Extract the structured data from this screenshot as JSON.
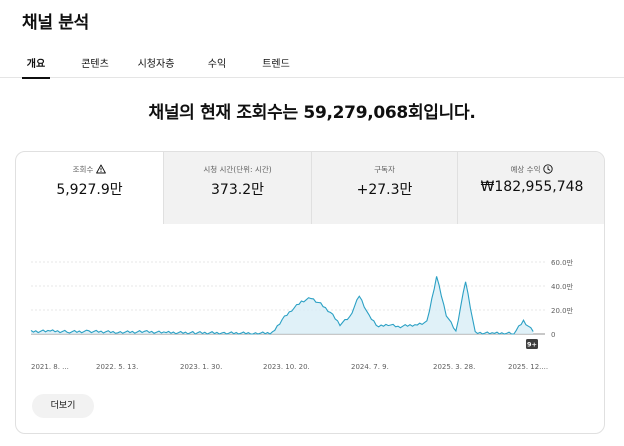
{
  "page_title": "채널 분석",
  "tabs": [
    {
      "label": "개요",
      "active": true
    },
    {
      "label": "콘텐츠",
      "active": false
    },
    {
      "label": "시청자층",
      "active": false
    },
    {
      "label": "수익",
      "active": false
    },
    {
      "label": "트렌드",
      "active": false
    }
  ],
  "headline": "채널의 현재 조회수는 59,279,068회입니다.",
  "metrics": [
    {
      "label": "조회수",
      "value": "5,927.9만",
      "icon": "warning-icon",
      "selected": true
    },
    {
      "label": "시청 시간(단위: 시간)",
      "value": "373.2만",
      "selected": false
    },
    {
      "label": "구독자",
      "value": "+27.3만",
      "selected": false
    },
    {
      "label": "예상 수익",
      "value": "₩182,955,748",
      "icon": "clock-icon",
      "selected": false
    }
  ],
  "more_button": "더보기",
  "colors": {
    "line": "#2ba0c4",
    "fill": "#d8eef6",
    "grid": "#e0e0e0",
    "tab_active": "#0f0f0f"
  },
  "chart_data": {
    "type": "area",
    "x_ticks": [
      "2021. 8. ...",
      "2022. 5. 13.",
      "2023. 1. 30.",
      "2023. 10. 20.",
      "2024. 7. 9.",
      "2025. 3. 28.",
      "2025. 12...."
    ],
    "y_ticks": [
      "60.0만",
      "40.0만",
      "20.0만",
      "0"
    ],
    "ylim": [
      0,
      600000
    ],
    "marker_badge": "9+",
    "series": [
      {
        "x": [
          "2021-08",
          "2021-10",
          "2021-12",
          "2022-02",
          "2022-05",
          "2022-08",
          "2022-10",
          "2023-01",
          "2023-04",
          "2023-07",
          "2023-09",
          "2023-10",
          "2023-11",
          "2023-12",
          "2024-01",
          "2024-02",
          "2024-03",
          "2024-04",
          "2024-05",
          "2024-06",
          "2024-07",
          "2024-08",
          "2024-09",
          "2024-10",
          "2024-12",
          "2025-01",
          "2025-02",
          "2025-03",
          "2025-04",
          "2025-05",
          "2025-06",
          "2025-08",
          "2025-10",
          "2025-11",
          "2025-12"
        ],
        "values": [
          20000,
          25000,
          18000,
          22000,
          15000,
          18000,
          12000,
          10000,
          8000,
          6000,
          8000,
          120000,
          200000,
          270000,
          300000,
          250000,
          180000,
          80000,
          140000,
          320000,
          150000,
          60000,
          80000,
          60000,
          80000,
          100000,
          480000,
          160000,
          20000,
          440000,
          10000,
          5000,
          5000,
          110000,
          20000
        ]
      }
    ]
  }
}
